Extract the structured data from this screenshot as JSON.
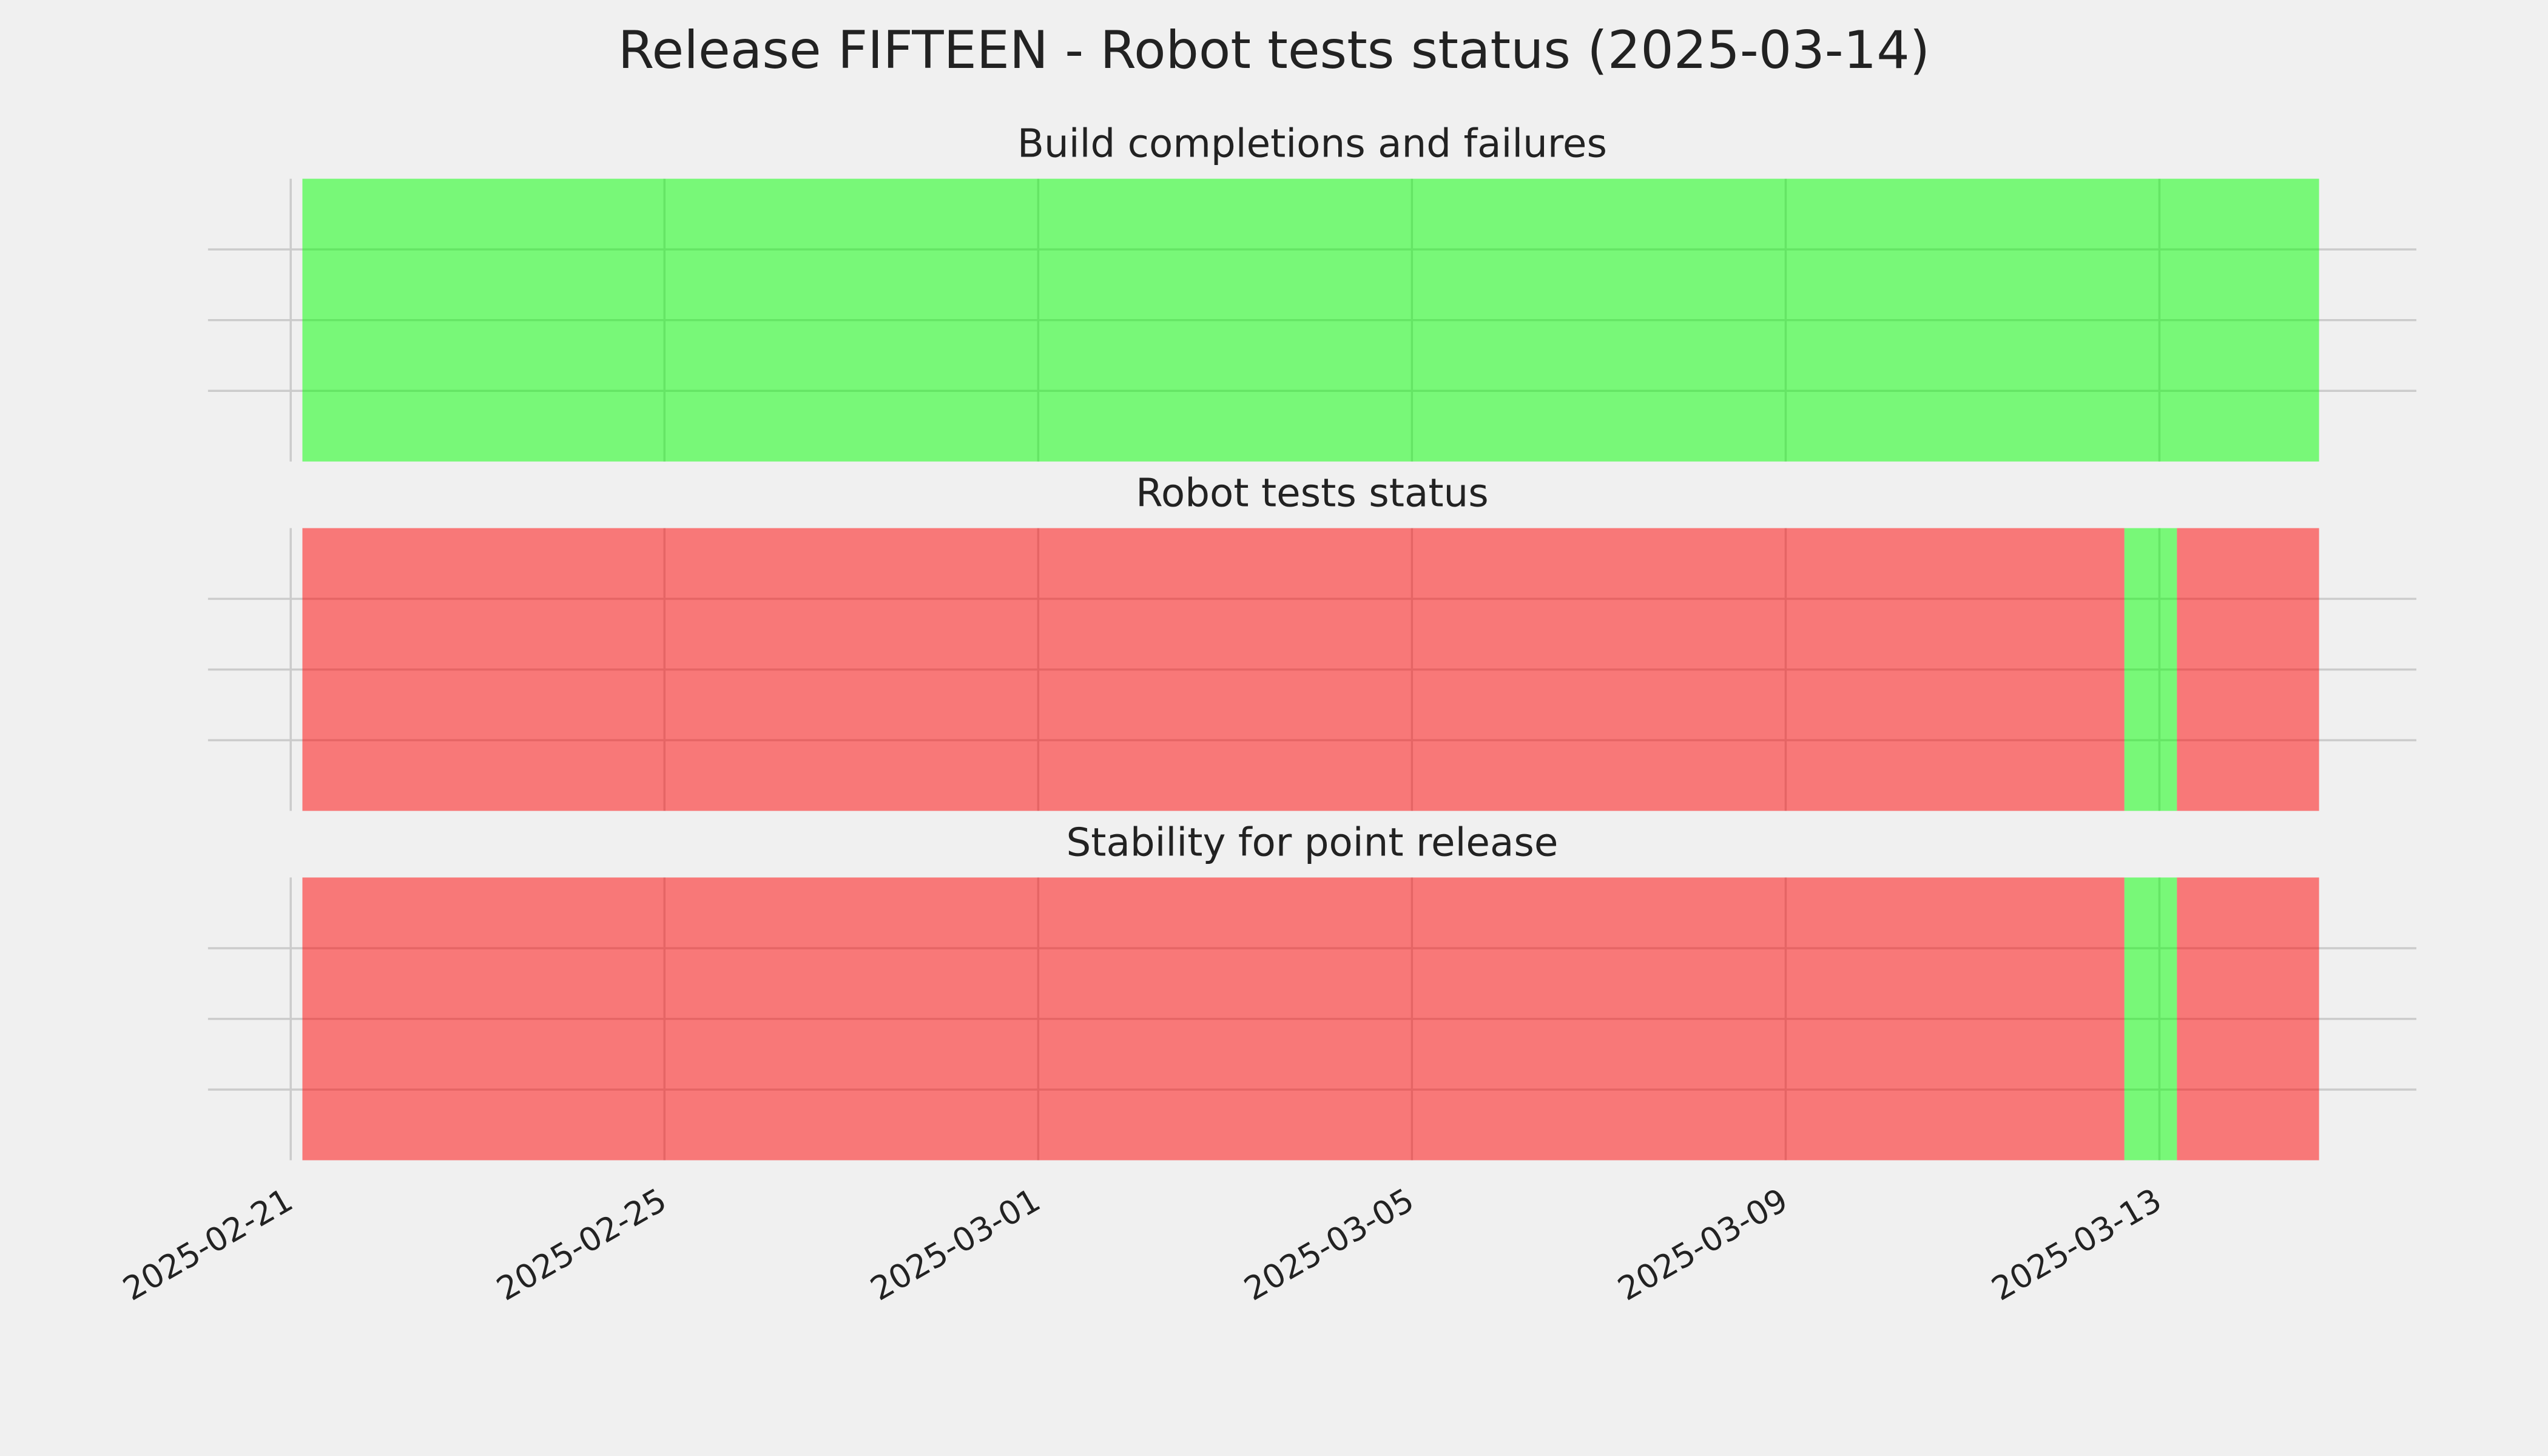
{
  "title": "Release FIFTEEN - Robot tests status (2025-03-14)",
  "chart_data": [
    {
      "type": "timeline",
      "title": "Build completions and failures",
      "xlim": [
        "2025-02-20T02:45",
        "2025-03-15T18:00"
      ],
      "xticks": [
        "2025-02-21",
        "2025-02-25",
        "2025-03-01",
        "2025-03-05",
        "2025-03-09",
        "2025-03-13"
      ],
      "ylim": [
        0,
        1
      ],
      "yticks": [
        0.25,
        0.5,
        0.75
      ],
      "grid": true,
      "alpha": 0.5,
      "spans": [
        {
          "start": "2025-02-21T03:00",
          "end": "2025-03-14T17:00",
          "color": "#00ff00"
        }
      ]
    },
    {
      "type": "timeline",
      "title": "Robot tests status",
      "xlim": [
        "2025-02-20T02:45",
        "2025-03-15T18:00"
      ],
      "xticks": [
        "2025-02-21",
        "2025-02-25",
        "2025-03-01",
        "2025-03-05",
        "2025-03-09",
        "2025-03-13"
      ],
      "ylim": [
        0,
        1
      ],
      "yticks": [
        0.25,
        0.5,
        0.75
      ],
      "grid": true,
      "alpha": 0.5,
      "spans": [
        {
          "start": "2025-02-21T03:00",
          "end": "2025-03-12T15:00",
          "color": "#ff0000"
        },
        {
          "start": "2025-03-12T15:00",
          "end": "2025-03-13T04:30",
          "color": "#00ff00"
        },
        {
          "start": "2025-03-13T04:30",
          "end": "2025-03-14T17:00",
          "color": "#ff0000"
        }
      ]
    },
    {
      "type": "timeline",
      "title": "Stability for point release",
      "xlim": [
        "2025-02-20T02:45",
        "2025-03-15T18:00"
      ],
      "xticks": [
        "2025-02-21",
        "2025-02-25",
        "2025-03-01",
        "2025-03-05",
        "2025-03-09",
        "2025-03-13"
      ],
      "ylim": [
        0,
        1
      ],
      "yticks": [
        0.25,
        0.5,
        0.75
      ],
      "grid": true,
      "alpha": 0.5,
      "spans": [
        {
          "start": "2025-02-21T03:00",
          "end": "2025-03-12T15:00",
          "color": "#ff0000"
        },
        {
          "start": "2025-03-12T15:00",
          "end": "2025-03-13T04:30",
          "color": "#00ff00"
        },
        {
          "start": "2025-03-13T04:30",
          "end": "2025-03-14T17:00",
          "color": "#ff0000"
        }
      ]
    }
  ]
}
